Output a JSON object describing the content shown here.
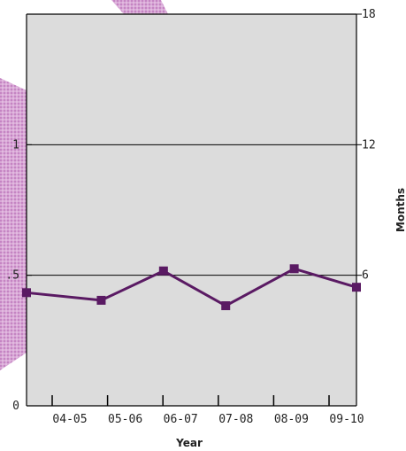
{
  "chart_data": {
    "type": "line",
    "title": "",
    "xlabel": "Year",
    "ylabel": "",
    "y2label": "Months",
    "categories": [
      "04-05",
      "05-06",
      "06-07",
      "07-08",
      "08-09",
      "09-10"
    ],
    "series": [
      {
        "x": [
          0.0,
          1.2,
          2.2,
          3.2,
          4.3,
          5.3
        ],
        "values": [
          5.2,
          4.85,
          6.2,
          4.6,
          6.3,
          5.45
        ]
      }
    ],
    "xlim": [
      0,
      5.3
    ],
    "ylim": [
      0,
      18
    ],
    "left_ticks": [
      {
        "label": "0",
        "value": 0
      },
      {
        "label": ".5",
        "value": 6
      },
      {
        "label": "1",
        "value": 12
      }
    ],
    "right_ticks": [
      {
        "label": "6",
        "value": 6
      },
      {
        "label": "12",
        "value": 12
      },
      {
        "label": "18",
        "value": 18
      }
    ],
    "grid": true,
    "colors": {
      "plot_background": "#dcdcdc",
      "line": "#5a1a63",
      "gridline": "#000000",
      "axis": "#000000",
      "decoration": "#c987c6"
    }
  }
}
